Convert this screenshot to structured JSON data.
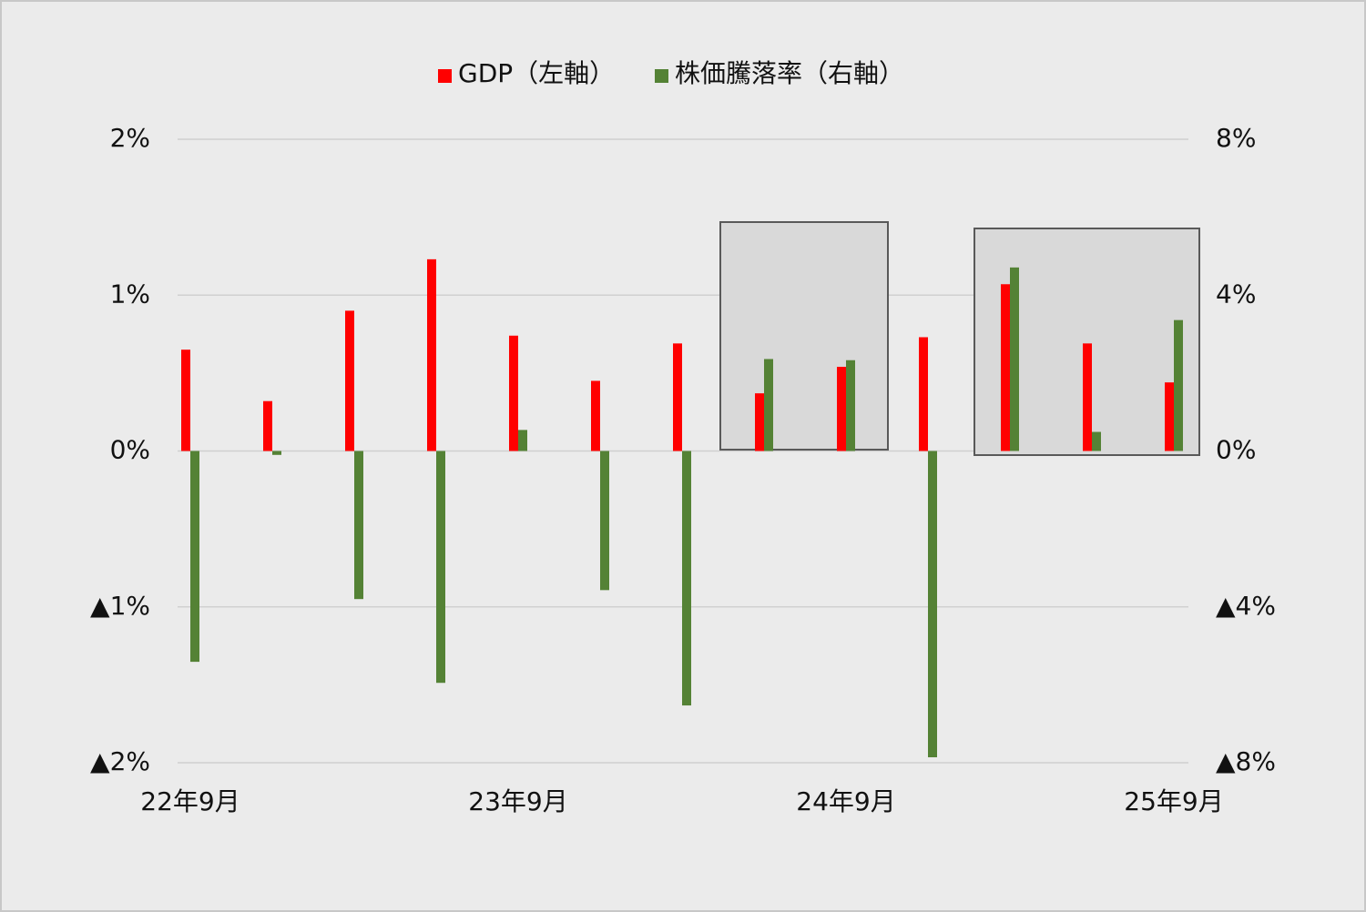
{
  "chart_data": {
    "type": "bar",
    "categories": [
      "22年9月",
      null,
      null,
      null,
      "23年9月",
      null,
      null,
      null,
      "24年9月",
      null,
      null,
      null,
      "25年9月"
    ],
    "series": [
      {
        "name": "GDP（左軸）",
        "color": "#ff0000",
        "values": [
          0.65,
          0.32,
          0.9,
          1.23,
          0.74,
          0.45,
          0.69,
          0.37,
          0.54,
          0.73,
          1.07,
          0.69,
          0.44
        ]
      },
      {
        "name": "株価騰落率（右軸）",
        "color": "#548235",
        "axis": "y2",
        "values": [
          -5.41,
          -0.1,
          -3.8,
          -5.95,
          0.54,
          -3.57,
          -6.53,
          2.36,
          2.33,
          -7.86,
          4.71,
          0.49,
          3.36
        ]
      }
    ],
    "ylim": [
      -2,
      2
    ],
    "yticks": [
      {
        "value": 2,
        "label": "2%"
      },
      {
        "value": 1,
        "label": "1%"
      },
      {
        "value": 0,
        "label": "0%"
      },
      {
        "value": -1,
        "label": "▲1%"
      },
      {
        "value": -2,
        "label": "▲2%"
      }
    ],
    "y2lim": [
      -8,
      8
    ],
    "y2ticks": [
      {
        "value": 8,
        "label": "8%"
      },
      {
        "value": 4,
        "label": "4%"
      },
      {
        "value": 0,
        "label": "0%"
      },
      {
        "value": -4,
        "label": "▲4%"
      },
      {
        "value": -8,
        "label": "▲8%"
      }
    ],
    "grid": true,
    "legend": "top"
  }
}
